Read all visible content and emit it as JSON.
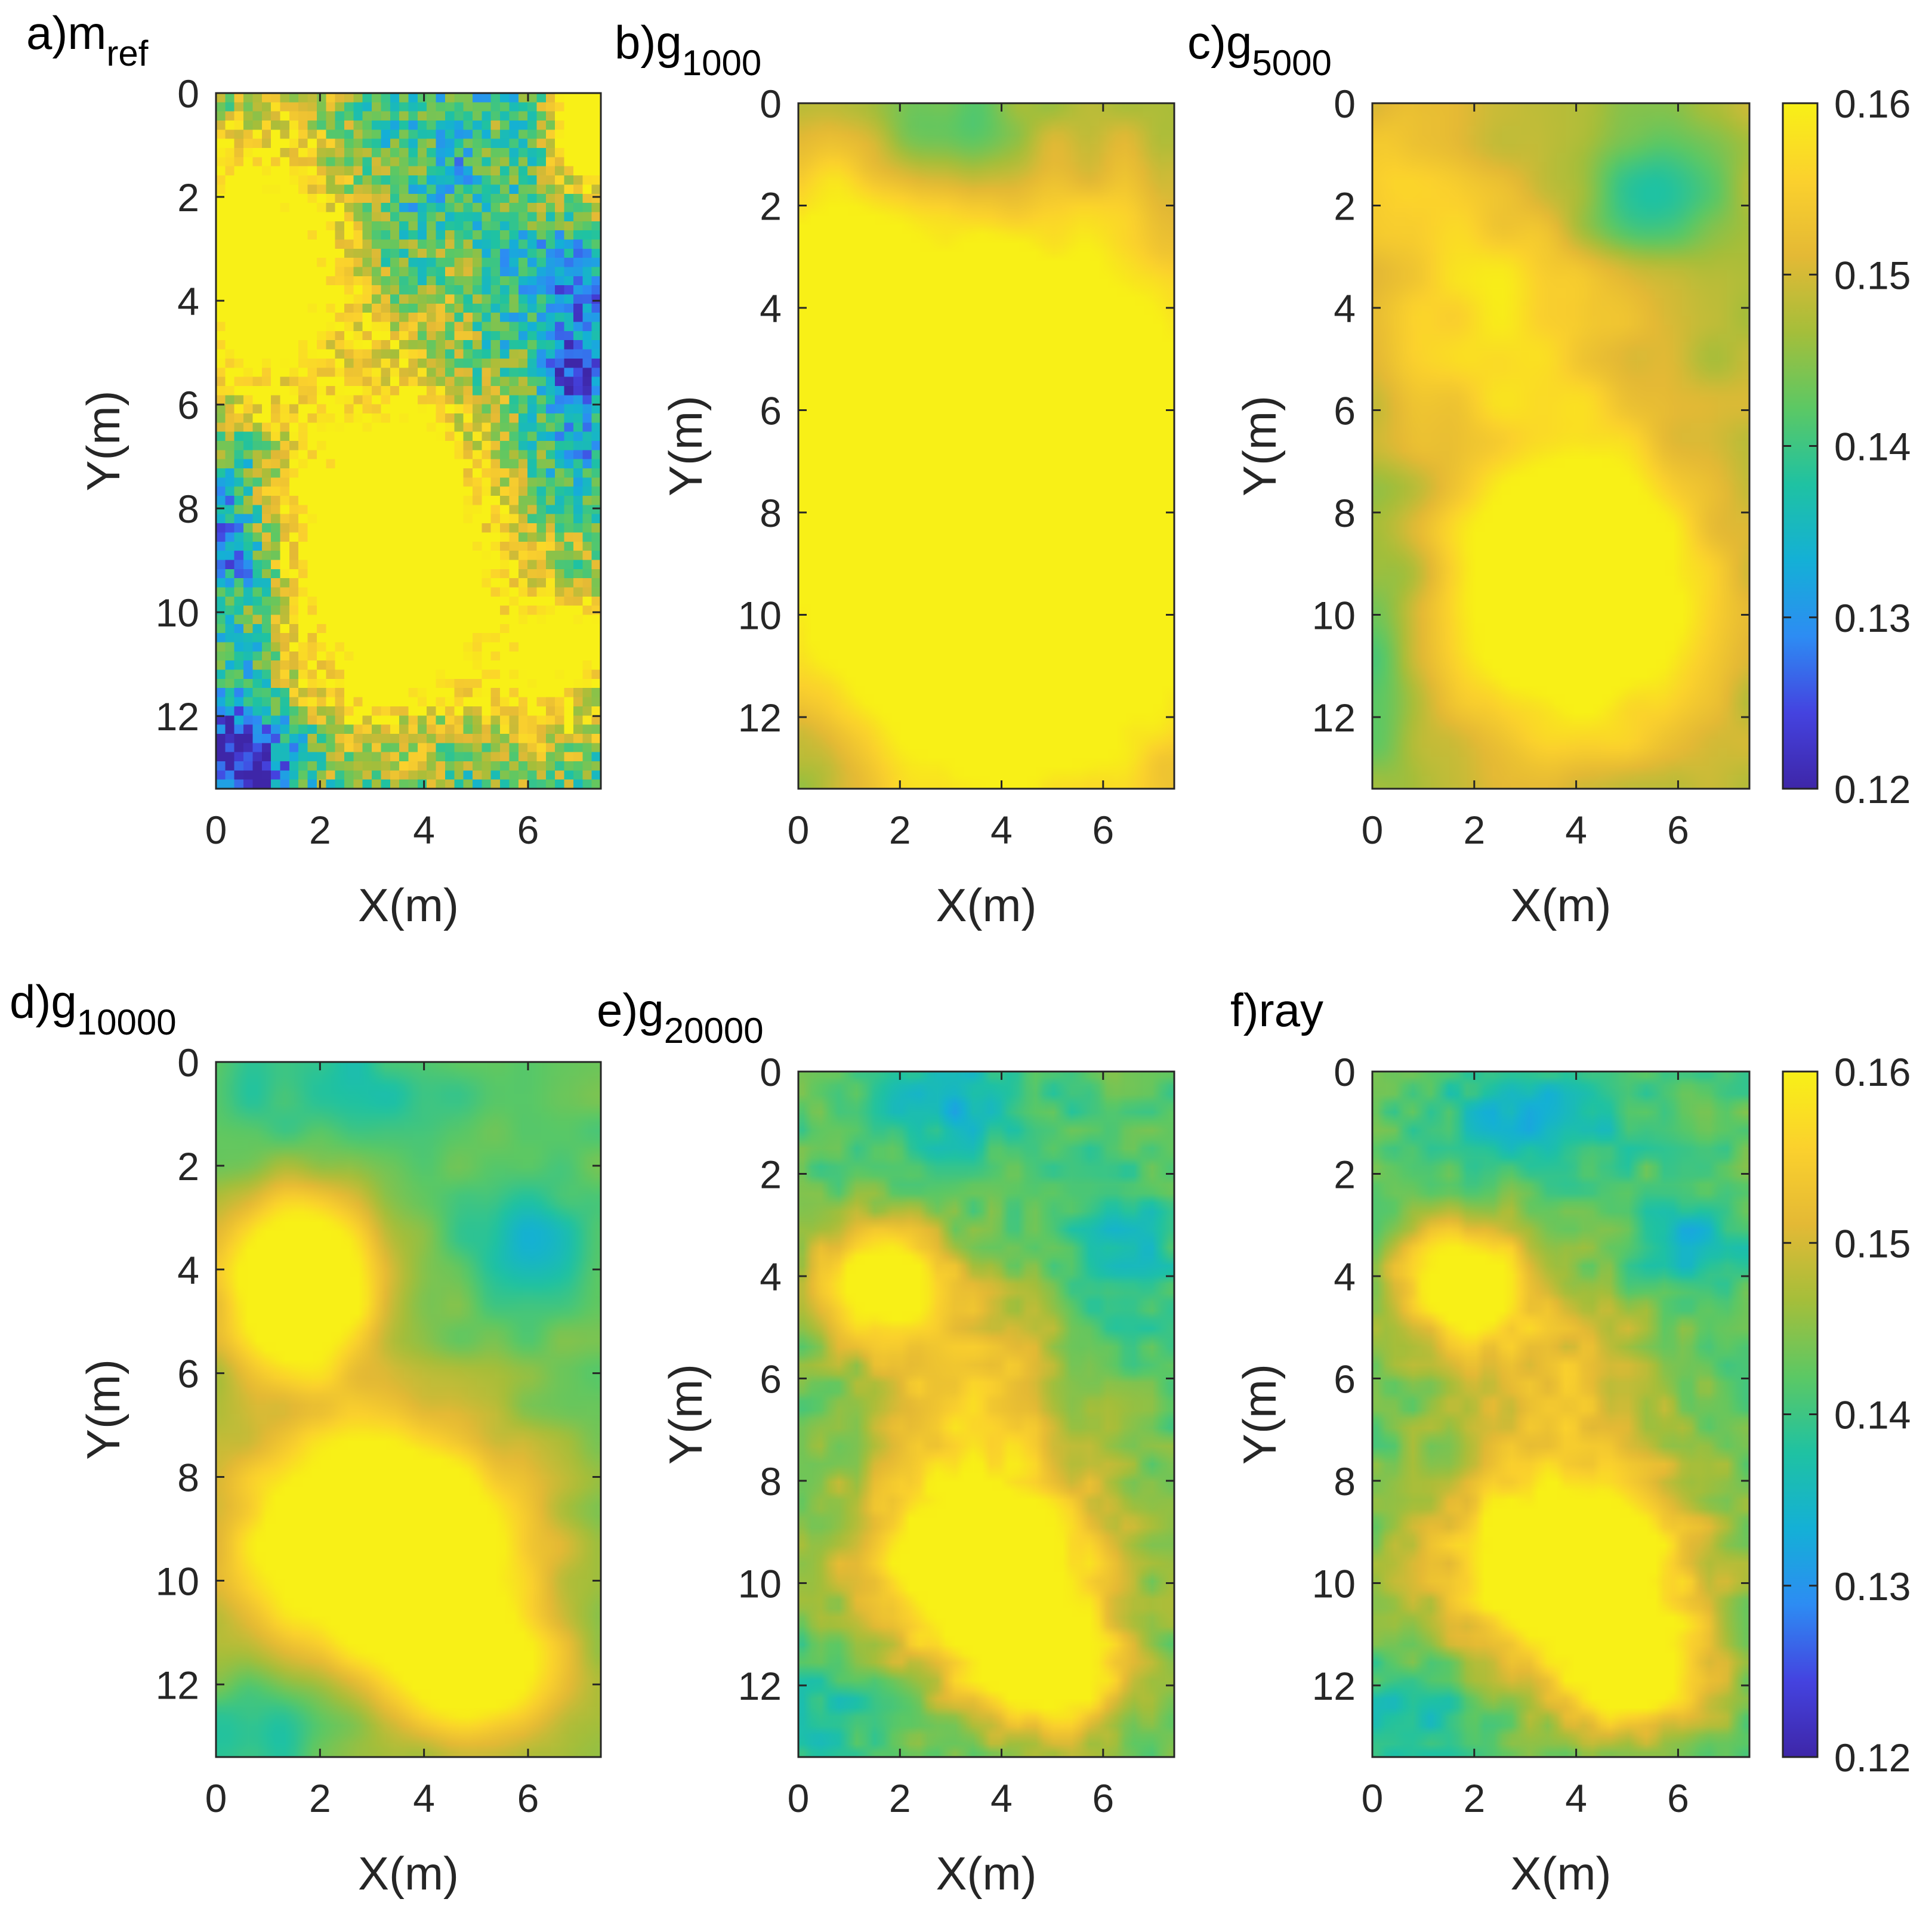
{
  "figure": {
    "colormap_name": "parula",
    "colormap_stops": [
      "#3e26a8",
      "#4443e0",
      "#2d8cf3",
      "#14b0d6",
      "#1fc2a2",
      "#5cc864",
      "#a5be3a",
      "#e4b935",
      "#fbd12d",
      "#f8f017"
    ]
  },
  "chart_data": [
    {
      "type": "heatmap",
      "panel": "a",
      "title_prefix": "a)m",
      "title_sub": "ref",
      "xlabel": "X(m)",
      "ylabel": "Y(m)",
      "xlim": [
        0,
        7.4
      ],
      "ylim": [
        13.4,
        0
      ],
      "xticks": [
        "0",
        "2",
        "4",
        "6"
      ],
      "yticks": [
        "0",
        "2",
        "4",
        "6",
        "8",
        "10",
        "12"
      ],
      "clim": [
        0.12,
        0.16
      ],
      "field": "reference",
      "grid_cells": [
        42,
        76
      ]
    },
    {
      "type": "heatmap",
      "panel": "b",
      "title_prefix": "b)g",
      "title_sub": "1000",
      "xlabel": "X(m)",
      "ylabel": "Y(m)",
      "xlim": [
        0,
        7.4
      ],
      "ylim": [
        13.4,
        0
      ],
      "xticks": [
        "0",
        "2",
        "4",
        "6"
      ],
      "yticks": [
        "0",
        "2",
        "4",
        "6",
        "8",
        "10",
        "12"
      ],
      "clim": [
        0.12,
        0.16
      ],
      "field": "g1000",
      "grid_cells": [
        42,
        76
      ]
    },
    {
      "type": "heatmap",
      "panel": "c",
      "title_prefix": "c)g",
      "title_sub": "5000",
      "xlabel": "X(m)",
      "ylabel": "Y(m)",
      "xlim": [
        0,
        7.4
      ],
      "ylim": [
        13.4,
        0
      ],
      "xticks": [
        "0",
        "2",
        "4",
        "6"
      ],
      "yticks": [
        "0",
        "2",
        "4",
        "6",
        "8",
        "10",
        "12"
      ],
      "clim": [
        0.12,
        0.16
      ],
      "field": "g5000",
      "grid_cells": [
        42,
        76
      ],
      "colorbar": {
        "ticks": [
          "0.16",
          "0.15",
          "0.14",
          "0.13",
          "0.12"
        ],
        "range": [
          0.12,
          0.16
        ]
      }
    },
    {
      "type": "heatmap",
      "panel": "d",
      "title_prefix": "d)g",
      "title_sub": "10000",
      "xlabel": "X(m)",
      "ylabel": "Y(m)",
      "xlim": [
        0,
        7.4
      ],
      "ylim": [
        13.4,
        0
      ],
      "xticks": [
        "0",
        "2",
        "4",
        "6"
      ],
      "yticks": [
        "0",
        "2",
        "4",
        "6",
        "8",
        "10",
        "12"
      ],
      "clim": [
        0.12,
        0.16
      ],
      "field": "g10000",
      "grid_cells": [
        42,
        76
      ]
    },
    {
      "type": "heatmap",
      "panel": "e",
      "title_prefix": "e)g",
      "title_sub": "20000",
      "xlabel": "X(m)",
      "ylabel": "Y(m)",
      "xlim": [
        0,
        7.4
      ],
      "ylim": [
        13.4,
        0
      ],
      "xticks": [
        "0",
        "2",
        "4",
        "6"
      ],
      "yticks": [
        "0",
        "2",
        "4",
        "6",
        "8",
        "10",
        "12"
      ],
      "clim": [
        0.12,
        0.16
      ],
      "field": "g20000",
      "grid_cells": [
        42,
        76
      ]
    },
    {
      "type": "heatmap",
      "panel": "f",
      "title_prefix": "f)ray",
      "title_sub": "",
      "xlabel": "X(m)",
      "ylabel": "Y(m)",
      "xlim": [
        0,
        7.4
      ],
      "ylim": [
        13.4,
        0
      ],
      "xticks": [
        "0",
        "2",
        "4",
        "6"
      ],
      "yticks": [
        "0",
        "2",
        "4",
        "6",
        "8",
        "10",
        "12"
      ],
      "clim": [
        0.12,
        0.16
      ],
      "field": "ray",
      "grid_cells": [
        42,
        76
      ],
      "colorbar": {
        "ticks": [
          "0.16",
          "0.15",
          "0.14",
          "0.13",
          "0.12"
        ],
        "range": [
          0.12,
          0.16
        ]
      }
    }
  ]
}
